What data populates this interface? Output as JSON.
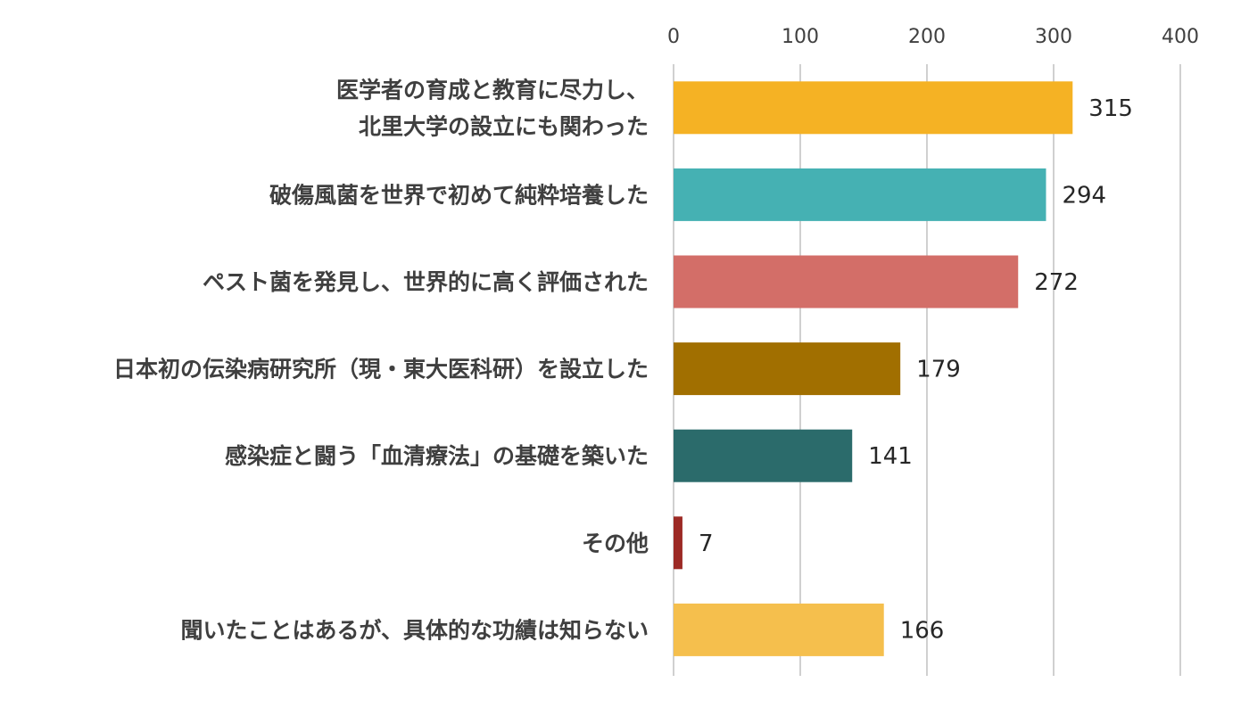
{
  "chart_data": {
    "type": "bar",
    "orientation": "horizontal",
    "categories": [
      [
        "医学者の育成と教育に尽力し、",
        "北里大学の設立にも関わった"
      ],
      [
        "破傷風菌を世界で初めて純粋培養した"
      ],
      [
        "ペスト菌を発見し、世界的に高く評価された"
      ],
      [
        "日本初の伝染病研究所（現・東大医科研）を設立した"
      ],
      [
        "感染症と闘う「血清療法」の基礎を築いた"
      ],
      [
        "その他"
      ],
      [
        "聞いたことはあるが、具体的な功績は知らない"
      ]
    ],
    "values": [
      315,
      294,
      272,
      179,
      141,
      7,
      166
    ],
    "colors": [
      "#F5B224",
      "#45B1B3",
      "#D36E68",
      "#A16F00",
      "#2B6B6B",
      "#9C2A25",
      "#F5BF4D"
    ],
    "xlim": [
      0,
      400
    ],
    "xticks": [
      0,
      100,
      200,
      300,
      400
    ],
    "x_axis_position": "top",
    "grid": true
  }
}
